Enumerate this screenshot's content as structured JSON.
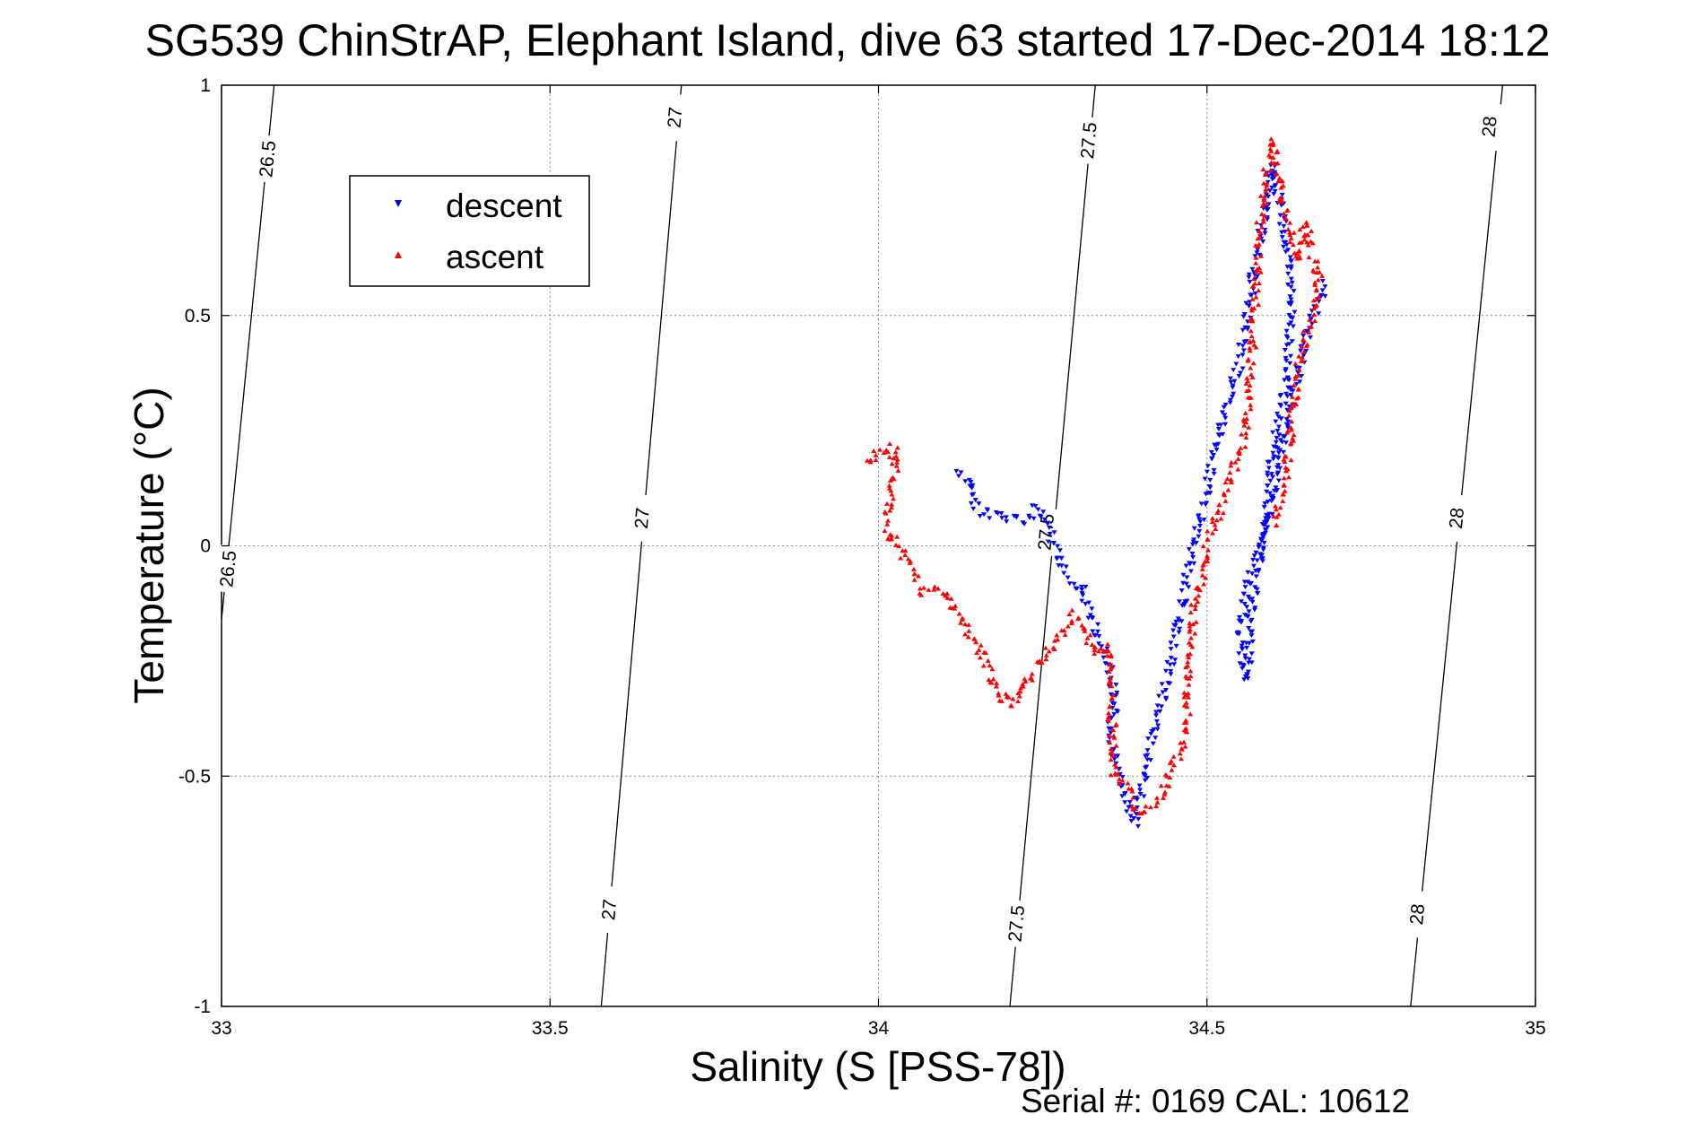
{
  "chart_data": {
    "type": "scatter",
    "title": "SG539 ChinStrAP, Elephant Island, dive 63 started 17-Dec-2014 18:12",
    "xlabel": "Salinity (S [PSS-78])",
    "ylabel": "Temperature (°C)",
    "xlim": [
      33,
      35
    ],
    "ylim": [
      -1,
      1
    ],
    "xticks": [
      "33",
      "33.5",
      "34",
      "34.5",
      "35"
    ],
    "yticks": [
      "-1",
      "-0.5",
      "0",
      "0.5",
      "1"
    ],
    "grid": true,
    "legend_position": "top-left",
    "footer": "Serial #: 0169 CAL: 10612",
    "colors": {
      "descent": "#0000ff",
      "ascent": "#ff0000",
      "contour": "#000000",
      "grid": "#888888"
    },
    "isopycnals": [
      {
        "value": 26.5,
        "points": [
          [
            33.08,
            1.0
          ],
          [
            33.0,
            -0.16
          ]
        ],
        "labels": [
          {
            "text": "26.5",
            "at": [
              33.07,
              0.84
            ]
          },
          {
            "text": "26.5",
            "at": [
              33.01,
              -0.05
            ]
          }
        ]
      },
      {
        "value": 27,
        "points": [
          [
            33.7,
            1.0
          ],
          [
            33.578,
            -1.0
          ]
        ],
        "labels": [
          {
            "text": "27",
            "at": [
              33.69,
              0.93
            ]
          },
          {
            "text": "27",
            "at": [
              33.64,
              0.06
            ]
          },
          {
            "text": "27",
            "at": [
              33.59,
              -0.79
            ]
          }
        ]
      },
      {
        "value": 27.5,
        "points": [
          [
            34.33,
            1.0
          ],
          [
            34.2,
            -1.0
          ]
        ],
        "labels": [
          {
            "text": "27.5",
            "at": [
              34.32,
              0.88
            ]
          },
          {
            "text": "27.5",
            "at": [
              34.255,
              0.03
            ]
          },
          {
            "text": "27.5",
            "at": [
              34.21,
              -0.82
            ]
          }
        ]
      },
      {
        "value": 28,
        "points": [
          [
            34.95,
            1.0
          ],
          [
            34.81,
            -1.0
          ]
        ],
        "labels": [
          {
            "text": "28",
            "at": [
              34.93,
              0.91
            ]
          },
          {
            "text": "28",
            "at": [
              34.88,
              0.06
            ]
          },
          {
            "text": "28",
            "at": [
              34.82,
              -0.8
            ]
          }
        ]
      }
    ],
    "series": [
      {
        "name": "descent",
        "marker": "triangle-down",
        "path": [
          [
            34.12,
            0.16
          ],
          [
            34.14,
            0.14
          ],
          [
            34.15,
            0.08
          ],
          [
            34.19,
            0.06
          ],
          [
            34.22,
            0.05
          ],
          [
            34.24,
            0.08
          ],
          [
            34.26,
            0.04
          ],
          [
            34.28,
            -0.05
          ],
          [
            34.31,
            -0.1
          ],
          [
            34.33,
            -0.18
          ],
          [
            34.35,
            -0.25
          ],
          [
            34.36,
            -0.35
          ],
          [
            34.35,
            -0.4
          ],
          [
            34.37,
            -0.5
          ],
          [
            34.38,
            -0.57
          ],
          [
            34.39,
            -0.6
          ],
          [
            34.4,
            -0.52
          ],
          [
            34.42,
            -0.4
          ],
          [
            34.44,
            -0.28
          ],
          [
            34.46,
            -0.14
          ],
          [
            34.48,
            0.0
          ],
          [
            34.5,
            0.12
          ],
          [
            34.52,
            0.25
          ],
          [
            34.55,
            0.4
          ],
          [
            34.57,
            0.58
          ],
          [
            34.59,
            0.74
          ],
          [
            34.6,
            0.83
          ],
          [
            34.62,
            0.68
          ],
          [
            34.63,
            0.52
          ],
          [
            34.62,
            0.35
          ],
          [
            34.6,
            0.2
          ],
          [
            34.59,
            0.05
          ],
          [
            34.56,
            -0.1
          ],
          [
            34.55,
            -0.2
          ],
          [
            34.56,
            -0.29
          ],
          [
            34.57,
            -0.12
          ],
          [
            34.59,
            0.05
          ],
          [
            34.61,
            0.18
          ],
          [
            34.63,
            0.32
          ],
          [
            34.65,
            0.45
          ],
          [
            34.68,
            0.58
          ]
        ],
        "jitter": 0.012
      },
      {
        "name": "ascent",
        "marker": "triangle-up",
        "path": [
          [
            33.98,
            0.18
          ],
          [
            34.01,
            0.21
          ],
          [
            34.03,
            0.2
          ],
          [
            34.01,
            0.04
          ],
          [
            34.05,
            -0.05
          ],
          [
            34.07,
            -0.1
          ],
          [
            34.1,
            -0.1
          ],
          [
            34.12,
            -0.15
          ],
          [
            34.15,
            -0.22
          ],
          [
            34.17,
            -0.28
          ],
          [
            34.19,
            -0.34
          ],
          [
            34.21,
            -0.34
          ],
          [
            34.23,
            -0.28
          ],
          [
            34.26,
            -0.23
          ],
          [
            34.28,
            -0.19
          ],
          [
            34.3,
            -0.15
          ],
          [
            34.32,
            -0.2
          ],
          [
            34.33,
            -0.23
          ],
          [
            34.35,
            -0.22
          ],
          [
            34.36,
            -0.5
          ],
          [
            34.38,
            -0.53
          ],
          [
            34.4,
            -0.58
          ],
          [
            34.43,
            -0.55
          ],
          [
            34.45,
            -0.47
          ],
          [
            34.47,
            -0.42
          ],
          [
            34.47,
            -0.3
          ],
          [
            34.48,
            -0.15
          ],
          [
            34.5,
            0.0
          ],
          [
            34.53,
            0.12
          ],
          [
            34.56,
            0.25
          ],
          [
            34.57,
            0.45
          ],
          [
            34.58,
            0.68
          ],
          [
            34.59,
            0.8
          ],
          [
            34.6,
            0.88
          ],
          [
            34.62,
            0.72
          ],
          [
            34.64,
            0.62
          ],
          [
            34.65,
            0.7
          ],
          [
            34.67,
            0.58
          ],
          [
            34.66,
            0.5
          ],
          [
            34.64,
            0.4
          ],
          [
            34.63,
            0.3
          ],
          [
            34.62,
            0.15
          ],
          [
            34.61,
            0.08
          ],
          [
            34.6,
            0.04
          ]
        ],
        "jitter": 0.012
      }
    ]
  }
}
